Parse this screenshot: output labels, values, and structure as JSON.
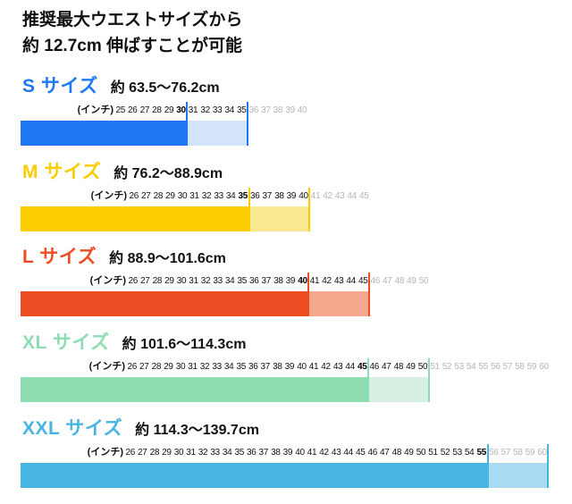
{
  "title": {
    "line1": "推奨最大ウエストサイズから",
    "line2": "約 12.7cm 伸ばすことが可能"
  },
  "chart_data": {
    "type": "bar",
    "title": "推奨最大ウエストサイズから 約 12.7cm 伸ばすことが可能",
    "x_unit_label": "(インチ)",
    "legend_note": "solid bar = recommended waist range (inches), light bar = approx. 12.7cm (5 inch) stretch allowance",
    "gray_number_color": "#b5b5b5",
    "text_color": "#111111",
    "series": [
      {
        "key": "s",
        "label": "S サイズ",
        "range_label": "約 63.5〜76.2cm",
        "scale_start_in": 25,
        "recommended_max_in": 30,
        "stretched_max_in": 35,
        "scale_end_in": 40,
        "dark_numbers_until": 35,
        "color": "#1d78f2",
        "light_color": "#d3e3fa"
      },
      {
        "key": "m",
        "label": "M サイズ",
        "range_label": "約 76.2〜88.9cm",
        "scale_start_in": 26,
        "recommended_max_in": 35,
        "stretched_max_in": 40,
        "scale_end_in": 45,
        "dark_numbers_until": 40,
        "color": "#fbcd00",
        "light_color": "#f9e88f"
      },
      {
        "key": "l",
        "label": "L サイズ",
        "range_label": "約 88.9〜101.6cm",
        "scale_start_in": 26,
        "recommended_max_in": 40,
        "stretched_max_in": 45,
        "scale_end_in": 50,
        "dark_numbers_until": 45,
        "color": "#ee4d24",
        "light_color": "#f6a88f"
      },
      {
        "key": "xl",
        "label": "XL サイズ",
        "range_label": "約 101.6〜114.3cm",
        "scale_start_in": 26,
        "recommended_max_in": 45,
        "stretched_max_in": 50,
        "scale_end_in": 60,
        "dark_numbers_until": 50,
        "color": "#8edcb2",
        "light_color": "#d6f1e4"
      },
      {
        "key": "xxl",
        "label": "XXL サイズ",
        "range_label": "約 114.3〜139.7cm",
        "scale_start_in": 26,
        "recommended_max_in": 55,
        "stretched_max_in": 60,
        "scale_end_in": 60,
        "dark_numbers_until": 55,
        "color": "#47b4e2",
        "light_color": "#a9dcf2"
      }
    ]
  }
}
